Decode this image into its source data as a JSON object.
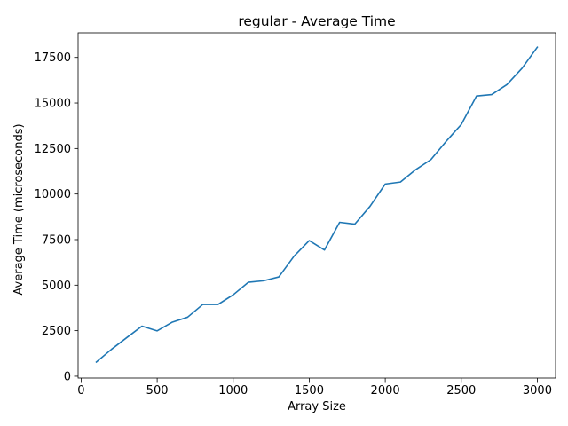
{
  "chart_data": {
    "type": "line",
    "title": "regular - Average Time",
    "xlabel": "Array Size",
    "ylabel": "Average Time (microseconds)",
    "xlim": [
      -20,
      3120
    ],
    "ylim": [
      -100,
      18850
    ],
    "xticks": [
      0,
      500,
      1000,
      1500,
      2000,
      2500,
      3000
    ],
    "yticks": [
      0,
      2500,
      5000,
      7500,
      10000,
      12500,
      15000,
      17500
    ],
    "grid": false,
    "line_color": "#1f77b4",
    "series": [
      {
        "x": [
          100,
          200,
          300,
          400,
          500,
          600,
          700,
          800,
          900,
          1000,
          1100,
          1200,
          1300,
          1400,
          1500,
          1600,
          1700,
          1800,
          1900,
          2000,
          2100,
          2200,
          2300,
          2400,
          2500,
          2600,
          2700,
          2800,
          2900,
          3000
        ],
        "values": [
          780,
          1480,
          2120,
          2750,
          2490,
          2970,
          3240,
          3940,
          3940,
          4470,
          5160,
          5240,
          5450,
          6590,
          7450,
          6930,
          8450,
          8350,
          9330,
          10550,
          10660,
          11340,
          11890,
          12890,
          13820,
          15380,
          15460,
          16010,
          16910,
          18060
        ]
      }
    ]
  }
}
